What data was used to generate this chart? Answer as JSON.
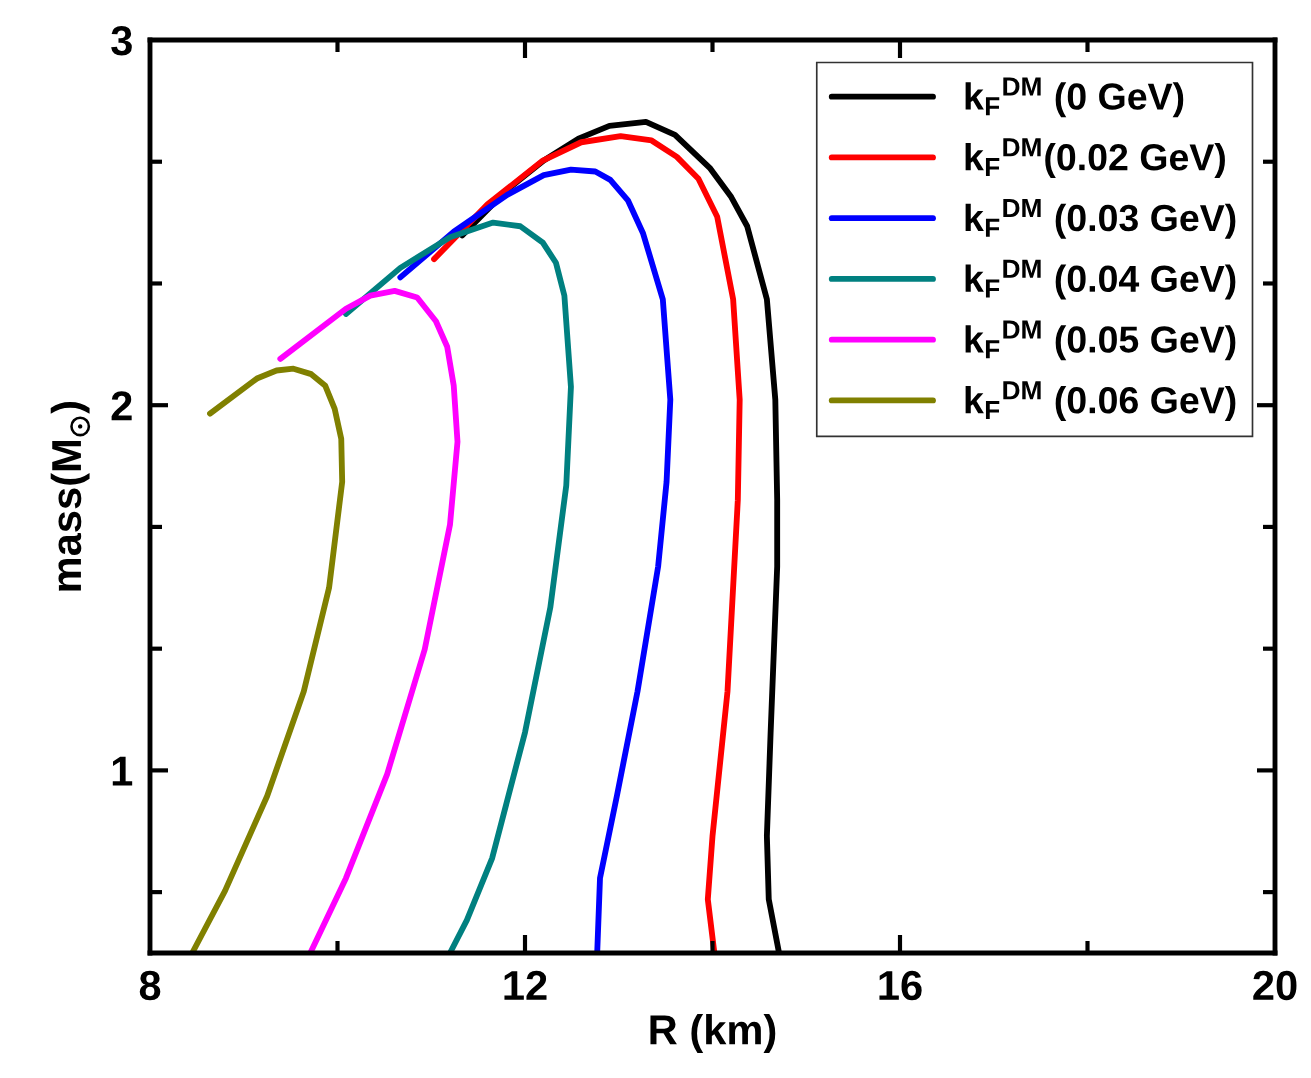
{
  "chart_data": {
    "type": "line",
    "xlabel": "R (km)",
    "ylabel": "mass(M$_{⊙}$)",
    "xlim": [
      8,
      20
    ],
    "xticks": [
      8,
      {
        "value": 10,
        "label": null
      },
      12,
      {
        "value": 14,
        "label": null
      },
      16,
      {
        "value": 18,
        "label": null
      },
      20
    ],
    "ylim": [
      0.5,
      3
    ],
    "yticks": [
      {
        "value": 0.6667,
        "label": null
      },
      1,
      {
        "value": 1.3333,
        "label": null
      },
      {
        "value": 1.6667,
        "label": null
      },
      2,
      {
        "value": 2.3333,
        "label": null
      },
      {
        "value": 2.6667,
        "label": null
      },
      3
    ],
    "grid": false,
    "legend": "top right",
    "marker": "none",
    "line_style": "solid",
    "series": [
      {
        "name": "k$_{F}$$^{DM}$ (0 GeV)",
        "color": "#000000",
        "x": [
          11.33,
          11.81,
          12.2,
          12.57,
          12.9,
          13.29,
          13.6,
          13.97,
          14.2,
          14.37,
          14.58,
          14.67,
          14.69,
          14.69,
          14.62,
          14.58,
          14.6,
          14.71
        ],
        "values": [
          2.465,
          2.59,
          2.67,
          2.73,
          2.765,
          2.776,
          2.74,
          2.65,
          2.57,
          2.49,
          2.29,
          2.015,
          1.74,
          1.558,
          1.104,
          0.82,
          0.647,
          0.5
        ]
      },
      {
        "name": "k$_{F}$$^{DM}$(0.02 GeV)",
        "color": "#ff0000",
        "x": [
          11.03,
          11.6,
          12.19,
          12.6,
          13.02,
          13.35,
          13.62,
          13.85,
          14.05,
          14.22,
          14.29,
          14.27,
          14.16,
          14.0,
          13.95,
          14.02
        ],
        "values": [
          2.4,
          2.55,
          2.67,
          2.72,
          2.737,
          2.725,
          2.68,
          2.62,
          2.516,
          2.29,
          2.015,
          1.74,
          1.216,
          0.82,
          0.647,
          0.5
        ]
      },
      {
        "name": "k$_{F}$$^{DM}$ (0.03 GeV)",
        "color": "#0000ff",
        "x": [
          10.67,
          11.24,
          11.81,
          12.2,
          12.49,
          12.75,
          12.91,
          13.1,
          13.26,
          13.47,
          13.55,
          13.51,
          13.42,
          13.2,
          12.98,
          12.8,
          12.77
        ],
        "values": [
          2.35,
          2.475,
          2.576,
          2.63,
          2.645,
          2.64,
          2.617,
          2.56,
          2.47,
          2.29,
          2.015,
          1.79,
          1.558,
          1.216,
          0.93,
          0.705,
          0.5
        ]
      },
      {
        "name": "k$_{F}$$^{DM}$ (0.04 GeV)",
        "color": "#008080",
        "x": [
          10.09,
          10.67,
          11.2,
          11.66,
          11.95,
          12.19,
          12.33,
          12.42,
          12.49,
          12.44,
          12.27,
          12.0,
          11.65,
          11.38,
          11.2
        ],
        "values": [
          2.25,
          2.376,
          2.46,
          2.5,
          2.49,
          2.445,
          2.39,
          2.3,
          2.05,
          1.78,
          1.446,
          1.104,
          0.76,
          0.59,
          0.5
        ]
      },
      {
        "name": "k$_{F}$$^{DM}$ (0.05 GeV)",
        "color": "#ff00ff",
        "x": [
          9.39,
          10.09,
          10.35,
          10.61,
          10.85,
          11.05,
          11.17,
          11.24,
          11.28,
          11.2,
          10.93,
          10.53,
          10.09,
          9.71
        ],
        "values": [
          2.127,
          2.264,
          2.3,
          2.313,
          2.295,
          2.23,
          2.16,
          2.053,
          1.9,
          1.673,
          1.331,
          0.99,
          0.705,
          0.5
        ]
      },
      {
        "name": "k$_{F}$$^{DM}$ (0.06 GeV)",
        "color": "#808000",
        "x": [
          8.64,
          9.14,
          9.35,
          9.53,
          9.72,
          9.87,
          9.97,
          10.04,
          10.05,
          9.91,
          9.64,
          9.25,
          8.8,
          8.45
        ],
        "values": [
          1.977,
          2.073,
          2.095,
          2.1,
          2.085,
          2.053,
          1.99,
          1.908,
          1.79,
          1.5,
          1.216,
          0.93,
          0.67,
          0.5
        ]
      }
    ]
  }
}
